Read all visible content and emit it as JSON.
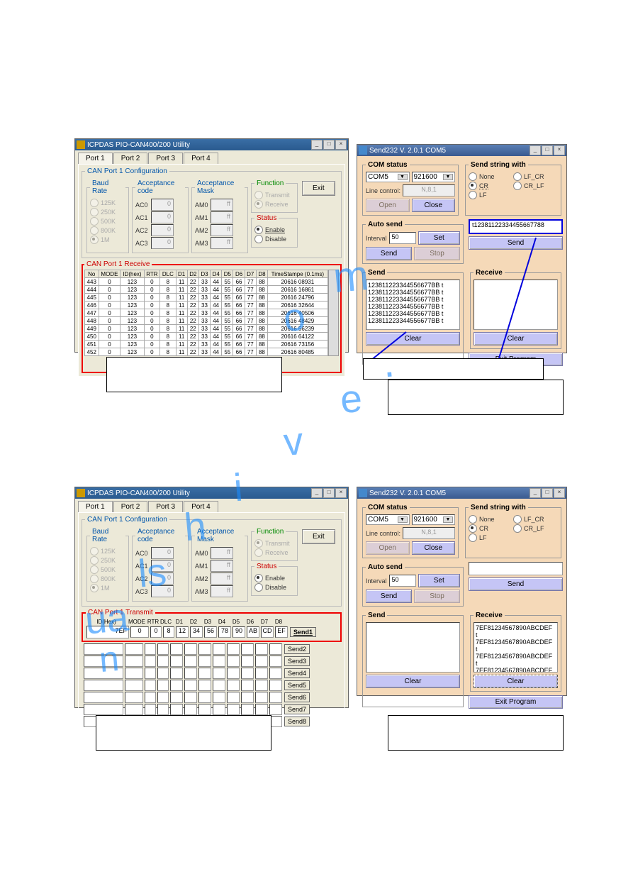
{
  "app1": {
    "title": "ICPDAS PIO-CAN400/200 Utility",
    "tabs": [
      "Port 1",
      "Port 2",
      "Port 3",
      "Port 4"
    ],
    "active_tab": 0,
    "config_title": "CAN Port 1 Configuration",
    "baud_title": "Baud Rate",
    "baud_opts": [
      "125K",
      "250K",
      "500K",
      "800K",
      "1M"
    ],
    "baud_sel": 4,
    "acode_title": "Acceptance code",
    "acode_labels": [
      "AC0",
      "AC1",
      "AC2",
      "AC3"
    ],
    "acode_vals": [
      "0",
      "0",
      "0",
      "0"
    ],
    "amask_title": "Acceptance Mask",
    "amask_labels": [
      "AM0",
      "AM1",
      "AM2",
      "AM3"
    ],
    "amask_vals": [
      "ff",
      "ff",
      "ff",
      "ff"
    ],
    "func_title": "Function",
    "func_opts": [
      "Transmit",
      "Receive"
    ],
    "func_sel": 1,
    "status_title": "Status",
    "status_opts": [
      "Enable",
      "Disable"
    ],
    "status_sel": 0,
    "exit": "Exit",
    "rx_title": "CAN Port 1 Receive",
    "rx_cols": [
      "No",
      "MODE",
      "ID(hex)",
      "RTR",
      "DLC",
      "D1",
      "D2",
      "D3",
      "D4",
      "D5",
      "D6",
      "D7",
      "D8",
      "TimeStampe (0.1ms)"
    ],
    "rx_rows": [
      [
        "443",
        "0",
        "123",
        "0",
        "8",
        "11",
        "22",
        "33",
        "44",
        "55",
        "66",
        "77",
        "88",
        "20616 08931"
      ],
      [
        "444",
        "0",
        "123",
        "0",
        "8",
        "11",
        "22",
        "33",
        "44",
        "55",
        "66",
        "77",
        "88",
        "20616 16861"
      ],
      [
        "445",
        "0",
        "123",
        "0",
        "8",
        "11",
        "22",
        "33",
        "44",
        "55",
        "66",
        "77",
        "88",
        "20616 24796"
      ],
      [
        "446",
        "0",
        "123",
        "0",
        "8",
        "11",
        "22",
        "33",
        "44",
        "55",
        "66",
        "77",
        "88",
        "20616 32644"
      ],
      [
        "447",
        "0",
        "123",
        "0",
        "8",
        "11",
        "22",
        "33",
        "44",
        "55",
        "66",
        "77",
        "88",
        "20616 40506"
      ],
      [
        "448",
        "0",
        "123",
        "0",
        "8",
        "11",
        "22",
        "33",
        "44",
        "55",
        "66",
        "77",
        "88",
        "20616 48429"
      ],
      [
        "449",
        "0",
        "123",
        "0",
        "8",
        "11",
        "22",
        "33",
        "44",
        "55",
        "66",
        "77",
        "88",
        "20616 56239"
      ],
      [
        "450",
        "0",
        "123",
        "0",
        "8",
        "11",
        "22",
        "33",
        "44",
        "55",
        "66",
        "77",
        "88",
        "20616 64122"
      ],
      [
        "451",
        "0",
        "123",
        "0",
        "8",
        "11",
        "22",
        "33",
        "44",
        "55",
        "66",
        "77",
        "88",
        "20616 73156"
      ],
      [
        "452",
        "0",
        "123",
        "0",
        "8",
        "11",
        "22",
        "33",
        "44",
        "55",
        "66",
        "77",
        "88",
        "20616 80485"
      ]
    ],
    "clear": "Clear"
  },
  "s232": {
    "title": "Send232 V. 2.0.1 COM5",
    "com_title": "COM status",
    "com_port": "COM5",
    "com_baud": "921600",
    "line_lbl": "Line control:",
    "line_val": "N,8,1",
    "open": "Open",
    "close": "Close",
    "sendwith_title": "Send string with",
    "sendwith_opts": [
      "None",
      "CR",
      "LF",
      "LF_CR",
      "CR_LF"
    ],
    "sendwith_sel": 1,
    "auto_title": "Auto send",
    "interval_lbl": "Interval",
    "interval_val": "50",
    "set": "Set",
    "send": "Send",
    "stop": "Stop",
    "sendstr": "t12381122334455667788",
    "sendbtn": "Send",
    "send_title": "Send",
    "send_lines": [
      "123811223344556677BB t",
      "123811223344556677BB t",
      "123811223344556677BB t",
      "123811223344556677BB t",
      "123811223344556677BB t",
      "123811223344556677BB t"
    ],
    "recv_title": "Receive",
    "clear": "Clear",
    "exit": "Exit Program"
  },
  "app2": {
    "title": "ICPDAS PIO-CAN400/200 Utility",
    "tabs": [
      "Port 1",
      "Port 2",
      "Port 3",
      "Port 4"
    ],
    "config_title": "CAN Port 1 Configuration",
    "baud_title": "Baud Rate",
    "baud_opts": [
      "125K",
      "250K",
      "500K",
      "800K",
      "1M"
    ],
    "acode_title": "Acceptance code",
    "acode_labels": [
      "AC0",
      "AC1",
      "AC2",
      "AC3"
    ],
    "acode_vals": [
      "0",
      "0",
      "0",
      "0"
    ],
    "amask_title": "Acceptance Mask",
    "amask_labels": [
      "AM0",
      "AM1",
      "AM2",
      "AM3"
    ],
    "amask_vals": [
      "ff",
      "ff",
      "ff",
      "ff"
    ],
    "func_title": "Function",
    "func_opts": [
      "Transmit",
      "Receive"
    ],
    "func_sel": 0,
    "status_title": "Status",
    "status_opts": [
      "Enable",
      "Disable"
    ],
    "status_sel": 0,
    "exit": "Exit",
    "tx_title": "CAN Port 1 Transmit",
    "tx_labels": [
      "ID(Hex)",
      "MODE",
      "RTR",
      "DLC",
      "D1",
      "D2",
      "D3",
      "D4",
      "D5",
      "D6",
      "D7",
      "D8"
    ],
    "tx_row": [
      "7EF",
      "0",
      "0",
      "8",
      "12",
      "34",
      "56",
      "78",
      "90",
      "AB",
      "CD",
      "EF"
    ],
    "send_labels": [
      "Send1",
      "Send2",
      "Send3",
      "Send4",
      "Send5",
      "Send6",
      "Send7",
      "Send8"
    ]
  },
  "s232b": {
    "recv_lines": [
      "7EF81234567890ABCDEF t",
      "7EF81234567890ABCDEF t",
      "7EF81234567890ABCDEF t",
      "7EF81234567890ABCDEF"
    ]
  },
  "wm": "manualshive.com"
}
